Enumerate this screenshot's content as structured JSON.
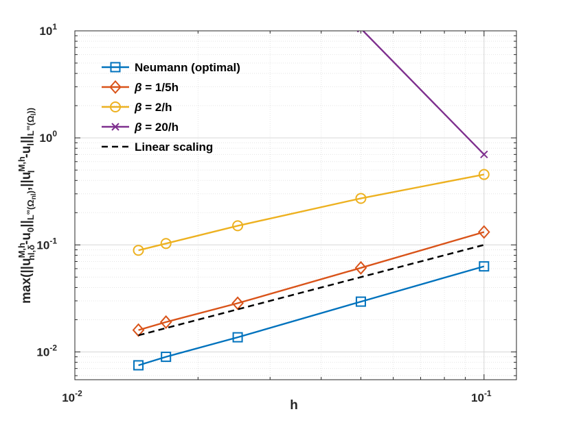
{
  "chart_data": {
    "type": "line",
    "xscale": "log",
    "yscale": "log",
    "xlabel": "h",
    "ylabel": {
      "p1": "max(||u",
      "p1_sup": "M,h",
      "p1_sub": "nl,δ",
      "p2": "-u",
      "p2_sub": "0",
      "p3": "||",
      "p3_sub": "L",
      "p3_subsup": "∞",
      "p3_subtail": "(Ω",
      "p3_subsub": "nl",
      "p3_close": ")",
      "p4": ",||u",
      "p4_sup": "M,h",
      "p4_sub": "l",
      "p5": "-u",
      "p5_sub": "l",
      "p6": "||",
      "p6_sub": "L",
      "p6_subsup": "∞",
      "p6_subtail": "(Ω",
      "p6_subsub": "l",
      "p6_close": "))"
    },
    "xlim": [
      0.01,
      0.12
    ],
    "ylim": [
      0.0055,
      10
    ],
    "grid": true,
    "legend_position": "top-left",
    "xticks": [
      {
        "value": 0.01,
        "base": "10",
        "exp": "-2"
      },
      {
        "value": 0.1,
        "base": "10",
        "exp": "-1"
      }
    ],
    "yticks": [
      {
        "value": 0.01,
        "base": "10",
        "exp": "-2"
      },
      {
        "value": 0.1,
        "base": "10",
        "exp": "-1"
      },
      {
        "value": 1,
        "base": "10",
        "exp": "0"
      },
      {
        "value": 10,
        "base": "10",
        "exp": "1"
      }
    ],
    "series": [
      {
        "name": "Neumann (optimal)",
        "color": "#0072BD",
        "marker": "square",
        "dashed": false,
        "x": [
          0.0143,
          0.0167,
          0.025,
          0.05,
          0.1
        ],
        "y": [
          0.0075,
          0.009,
          0.0137,
          0.0295,
          0.063
        ]
      },
      {
        "name": "β = 1/5h",
        "color": "#D95319",
        "marker": "diamond",
        "dashed": false,
        "x": [
          0.0143,
          0.0167,
          0.025,
          0.05,
          0.1
        ],
        "y": [
          0.016,
          0.019,
          0.0285,
          0.061,
          0.132
        ]
      },
      {
        "name": "β = 2/h",
        "color": "#EDB120",
        "marker": "circle",
        "dashed": false,
        "x": [
          0.0143,
          0.0167,
          0.025,
          0.05,
          0.1
        ],
        "y": [
          0.089,
          0.103,
          0.151,
          0.272,
          0.455
        ]
      },
      {
        "name": "β = 20/h",
        "color": "#7E2F8E",
        "marker": "x",
        "dashed": false,
        "x": [
          0.05,
          0.1
        ],
        "y": [
          10.5,
          0.7
        ]
      },
      {
        "name": "Linear scaling",
        "color": "#000000",
        "marker": "none",
        "dashed": true,
        "x": [
          0.0143,
          0.1
        ],
        "y": [
          0.0143,
          0.1
        ]
      }
    ]
  }
}
